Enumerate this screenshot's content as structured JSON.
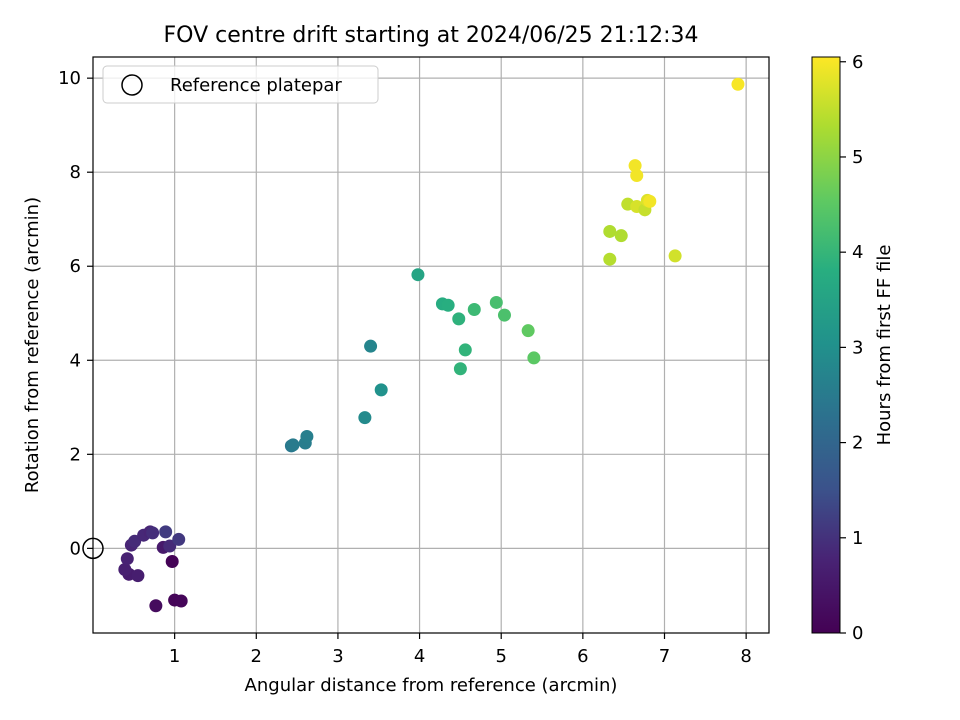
{
  "chart_data": {
    "type": "scatter",
    "title": "FOV centre drift starting at 2024/06/25 21:12:34",
    "xlabel": "Angular distance from reference (arcmin)",
    "ylabel": "Rotation from reference (arcmin)",
    "xlim": [
      0,
      8.28
    ],
    "ylim": [
      -1.8,
      10.45
    ],
    "xticks": [
      "1",
      "2",
      "3",
      "4",
      "5",
      "6",
      "7",
      "8"
    ],
    "yticks": [
      "0",
      "2",
      "4",
      "6",
      "8",
      "10"
    ],
    "grid": true,
    "legend": {
      "location": "upper-left",
      "entries": [
        "Reference platepar"
      ]
    },
    "reference_point": {
      "x": 0,
      "y": 0
    },
    "colorbar": {
      "label": "Hours from first FF file",
      "range": [
        0,
        6.05
      ],
      "ticks": [
        "0",
        "1",
        "2",
        "3",
        "4",
        "5",
        "6"
      ],
      "colormap": "viridis"
    },
    "points": [
      {
        "x": 0.97,
        "y": -0.28,
        "c": 0.05
      },
      {
        "x": 1.0,
        "y": -1.1,
        "c": 0.1
      },
      {
        "x": 1.08,
        "y": -1.12,
        "c": 0.12
      },
      {
        "x": 0.77,
        "y": -1.22,
        "c": 0.25
      },
      {
        "x": 0.44,
        "y": -0.55,
        "c": 0.6
      },
      {
        "x": 0.55,
        "y": -0.58,
        "c": 0.65
      },
      {
        "x": 0.39,
        "y": -0.45,
        "c": 0.7
      },
      {
        "x": 0.42,
        "y": -0.22,
        "c": 0.75
      },
      {
        "x": 0.86,
        "y": 0.02,
        "c": 0.55
      },
      {
        "x": 0.94,
        "y": 0.05,
        "c": 0.9
      },
      {
        "x": 0.47,
        "y": 0.07,
        "c": 0.8
      },
      {
        "x": 0.51,
        "y": 0.15,
        "c": 0.9
      },
      {
        "x": 0.62,
        "y": 0.28,
        "c": 0.85
      },
      {
        "x": 0.7,
        "y": 0.35,
        "c": 0.8
      },
      {
        "x": 0.73,
        "y": 0.33,
        "c": 0.95
      },
      {
        "x": 0.89,
        "y": 0.35,
        "c": 1.15
      },
      {
        "x": 1.05,
        "y": 0.19,
        "c": 1.1
      },
      {
        "x": 2.43,
        "y": 2.18,
        "c": 2.45
      },
      {
        "x": 2.45,
        "y": 2.2,
        "c": 2.5
      },
      {
        "x": 2.6,
        "y": 2.24,
        "c": 2.55
      },
      {
        "x": 2.62,
        "y": 2.38,
        "c": 2.6
      },
      {
        "x": 3.33,
        "y": 2.78,
        "c": 2.85
      },
      {
        "x": 3.4,
        "y": 4.3,
        "c": 2.75
      },
      {
        "x": 3.53,
        "y": 3.37,
        "c": 3.05
      },
      {
        "x": 3.98,
        "y": 5.82,
        "c": 3.55
      },
      {
        "x": 4.28,
        "y": 5.2,
        "c": 3.75
      },
      {
        "x": 4.35,
        "y": 5.17,
        "c": 3.8
      },
      {
        "x": 4.48,
        "y": 4.88,
        "c": 3.9
      },
      {
        "x": 4.5,
        "y": 3.82,
        "c": 3.95
      },
      {
        "x": 4.56,
        "y": 4.22,
        "c": 3.95
      },
      {
        "x": 4.67,
        "y": 5.08,
        "c": 4.1
      },
      {
        "x": 4.94,
        "y": 5.23,
        "c": 4.25
      },
      {
        "x": 5.04,
        "y": 4.96,
        "c": 4.3
      },
      {
        "x": 5.33,
        "y": 4.63,
        "c": 4.55
      },
      {
        "x": 5.4,
        "y": 4.05,
        "c": 4.5
      },
      {
        "x": 6.33,
        "y": 6.74,
        "c": 5.35
      },
      {
        "x": 6.33,
        "y": 6.15,
        "c": 5.4
      },
      {
        "x": 6.47,
        "y": 6.65,
        "c": 5.35
      },
      {
        "x": 6.55,
        "y": 7.32,
        "c": 5.5
      },
      {
        "x": 6.64,
        "y": 8.14,
        "c": 5.95
      },
      {
        "x": 6.66,
        "y": 7.93,
        "c": 5.95
      },
      {
        "x": 6.66,
        "y": 7.27,
        "c": 5.7
      },
      {
        "x": 6.76,
        "y": 7.2,
        "c": 5.55
      },
      {
        "x": 6.79,
        "y": 7.4,
        "c": 5.75
      },
      {
        "x": 6.82,
        "y": 7.38,
        "c": 5.95
      },
      {
        "x": 7.13,
        "y": 6.22,
        "c": 5.65
      },
      {
        "x": 7.9,
        "y": 9.87,
        "c": 6.0
      }
    ]
  }
}
